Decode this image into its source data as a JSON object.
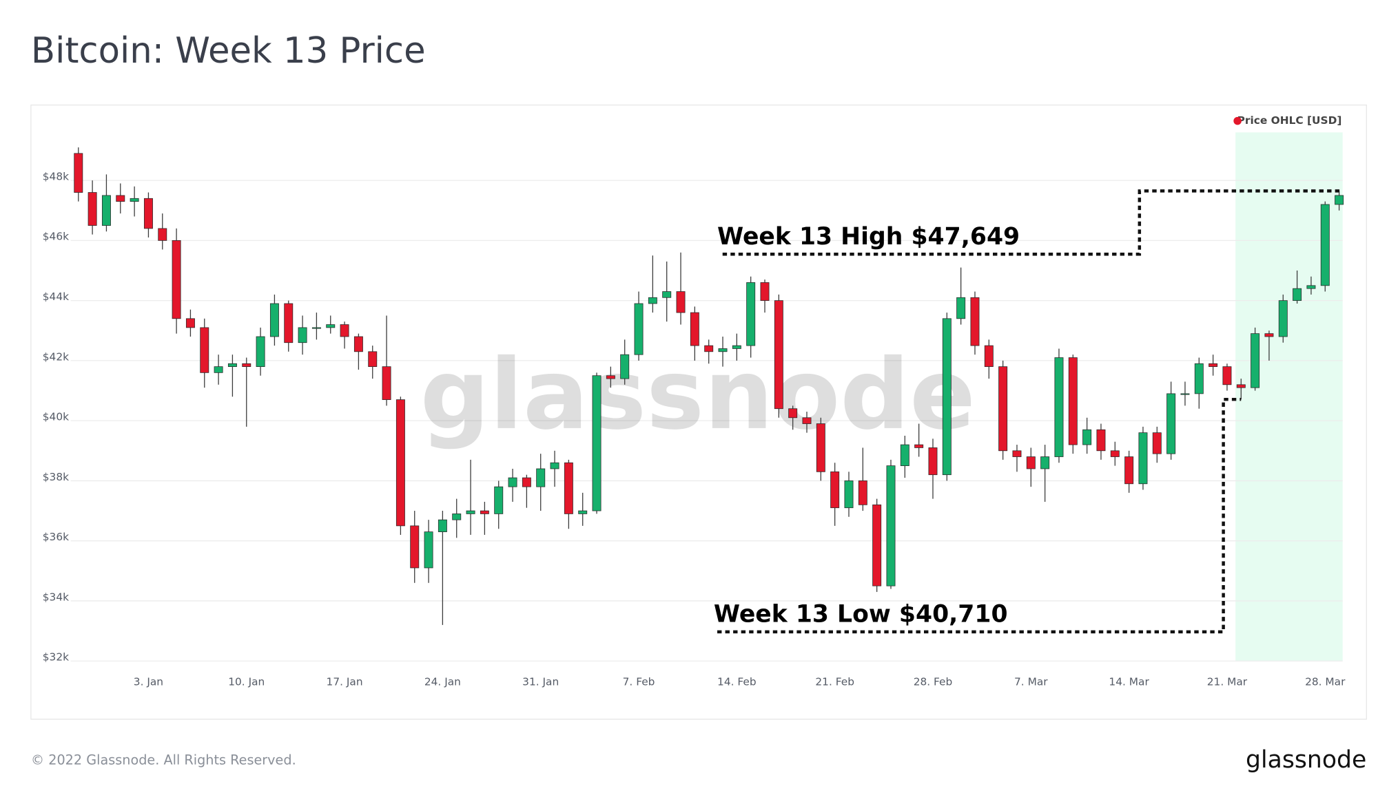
{
  "chart_data": {
    "type": "candlestick",
    "title": "Bitcoin: Week 13 Price",
    "legend": "Price OHLC [USD]",
    "legend_corner": "top-right",
    "watermark": "glassnode",
    "footer": "© 2022 Glassnode. All Rights Reserved.",
    "logo": "glassnode",
    "up_color": "#16b06c",
    "down_color": "#e3172b",
    "legend_color": "#e3172b",
    "highlight_color": "#e6fcf1",
    "highlight_range": [
      80.6,
      88.25
    ],
    "grid": true,
    "xlim": [
      -2.55,
      88.25
    ],
    "xticks": [
      {
        "value": 3,
        "label": "3. Jan"
      },
      {
        "value": 10,
        "label": "10. Jan"
      },
      {
        "value": 17,
        "label": "17. Jan"
      },
      {
        "value": 24,
        "label": "24. Jan"
      },
      {
        "value": 31,
        "label": "31. Jan"
      },
      {
        "value": 38,
        "label": "7. Feb"
      },
      {
        "value": 45,
        "label": "14. Feb"
      },
      {
        "value": 52,
        "label": "21. Feb"
      },
      {
        "value": 59,
        "label": "28. Feb"
      },
      {
        "value": 66,
        "label": "7. Mar"
      },
      {
        "value": 73,
        "label": "14. Mar"
      },
      {
        "value": 80,
        "label": "21. Mar"
      },
      {
        "value": 87,
        "label": "28. Mar"
      }
    ],
    "ylim": [
      32000,
      49600
    ],
    "yticks": [
      {
        "value": 32000,
        "label": "$32k"
      },
      {
        "value": 34000,
        "label": "$34k"
      },
      {
        "value": 36000,
        "label": "$36k"
      },
      {
        "value": 38000,
        "label": "$38k"
      },
      {
        "value": 40000,
        "label": "$40k"
      },
      {
        "value": 42000,
        "label": "$42k"
      },
      {
        "value": 44000,
        "label": "$44k"
      },
      {
        "value": 46000,
        "label": "$46k"
      },
      {
        "value": 48000,
        "label": "$48k"
      }
    ],
    "annotations": [
      {
        "text": "Week 13 High $47,649",
        "value": 47649
      },
      {
        "text": "Week 13 Low $40,710",
        "value": 40710
      }
    ],
    "x": [
      -2,
      -1,
      0,
      1,
      2,
      3,
      4,
      5,
      6,
      7,
      8,
      9,
      10,
      11,
      12,
      13,
      14,
      15,
      16,
      17,
      18,
      19,
      20,
      21,
      22,
      23,
      24,
      25,
      26,
      27,
      28,
      29,
      30,
      31,
      32,
      33,
      34,
      35,
      36,
      37,
      38,
      39,
      40,
      41,
      42,
      43,
      44,
      45,
      46,
      47,
      48,
      49,
      50,
      51,
      52,
      53,
      54,
      55,
      56,
      57,
      58,
      59,
      60,
      61,
      62,
      63,
      64,
      65,
      66,
      67,
      68,
      69,
      70,
      71,
      72,
      73,
      74,
      75,
      76,
      77,
      78,
      79,
      80,
      81,
      82,
      83,
      84,
      85,
      86,
      87,
      88
    ],
    "open": [
      48900,
      47600,
      46500,
      47500,
      47300,
      47400,
      46400,
      46000,
      43400,
      43100,
      41600,
      41800,
      41900,
      41800,
      42800,
      43900,
      42600,
      43100,
      43100,
      43200,
      42800,
      42300,
      41800,
      40700,
      36500,
      35100,
      36300,
      36700,
      36900,
      37000,
      36900,
      37800,
      38100,
      37800,
      38400,
      38600,
      36900,
      37000,
      41500,
      41400,
      42200,
      43900,
      44100,
      44300,
      43600,
      42500,
      42300,
      42400,
      42500,
      44600,
      44000,
      40400,
      40100,
      39900,
      38300,
      37100,
      38000,
      37200,
      34500,
      38500,
      39200,
      39100,
      38200,
      43400,
      44100,
      42500,
      41800,
      39000,
      38800,
      38400,
      38800,
      42100,
      39200,
      39700,
      39000,
      38800,
      37900,
      39600,
      38900,
      40900,
      40900,
      41900,
      41800,
      41200,
      41100,
      42900,
      42800,
      44000,
      44400,
      44500,
      47200
    ],
    "high": [
      49100,
      48000,
      48200,
      47900,
      47800,
      47600,
      46900,
      46400,
      43700,
      43400,
      42200,
      42200,
      42100,
      43100,
      44200,
      44000,
      43500,
      43600,
      43500,
      43300,
      42900,
      42500,
      43500,
      40800,
      37000,
      36700,
      37000,
      37400,
      38700,
      37300,
      38000,
      38400,
      38200,
      38900,
      39000,
      38700,
      37600,
      41600,
      41800,
      42700,
      44300,
      45500,
      45300,
      45600,
      43800,
      42700,
      42800,
      42900,
      44800,
      44700,
      44200,
      40500,
      40300,
      40100,
      38600,
      38300,
      39100,
      37400,
      38700,
      39500,
      39900,
      39400,
      43600,
      45100,
      44300,
      42700,
      42000,
      39200,
      39100,
      39200,
      42400,
      42200,
      40100,
      39900,
      39300,
      39000,
      39800,
      39800,
      41300,
      41300,
      42100,
      42200,
      41900,
      41400,
      43100,
      43000,
      44200,
      45000,
      44800,
      47300,
      47649
    ],
    "low": [
      47300,
      46200,
      46300,
      46900,
      46800,
      46100,
      45700,
      42900,
      42800,
      41100,
      41200,
      40800,
      39800,
      41500,
      42500,
      42300,
      42200,
      42700,
      42900,
      42400,
      41700,
      41400,
      40500,
      36200,
      34600,
      34600,
      33200,
      36100,
      36200,
      36200,
      36400,
      37300,
      37100,
      37000,
      37800,
      36400,
      36500,
      36900,
      41100,
      41200,
      42000,
      43600,
      43300,
      43200,
      42000,
      41900,
      41800,
      42000,
      42100,
      43600,
      40100,
      39700,
      39600,
      38000,
      36500,
      36800,
      37000,
      34300,
      34400,
      38100,
      38800,
      37400,
      38000,
      43200,
      42200,
      41400,
      38700,
      38300,
      37800,
      37300,
      38600,
      38900,
      38900,
      38700,
      38500,
      37600,
      37700,
      38600,
      38700,
      40500,
      40400,
      41500,
      41000,
      40710,
      41000,
      42000,
      42600,
      43900,
      44200,
      44300,
      47000
    ],
    "close": [
      47600,
      46500,
      47500,
      47300,
      47400,
      46400,
      46000,
      43400,
      43100,
      41600,
      41800,
      41900,
      41800,
      42800,
      43900,
      42600,
      43100,
      43100,
      43200,
      42800,
      42300,
      41800,
      40700,
      36500,
      35100,
      36300,
      36700,
      36900,
      37000,
      36900,
      37800,
      38100,
      37800,
      38400,
      38600,
      36900,
      37000,
      41500,
      41400,
      42200,
      43900,
      44100,
      44300,
      43600,
      42500,
      42300,
      42400,
      42500,
      44600,
      44000,
      40400,
      40100,
      39900,
      38300,
      37100,
      38000,
      37200,
      34500,
      38500,
      39200,
      39100,
      38200,
      43400,
      44100,
      42500,
      41800,
      39000,
      38800,
      38400,
      38800,
      42100,
      39200,
      39700,
      39000,
      38800,
      37900,
      39600,
      38900,
      40900,
      40900,
      41900,
      41800,
      41200,
      41100,
      42900,
      42800,
      44000,
      44400,
      44500,
      47200,
      47500
    ]
  }
}
